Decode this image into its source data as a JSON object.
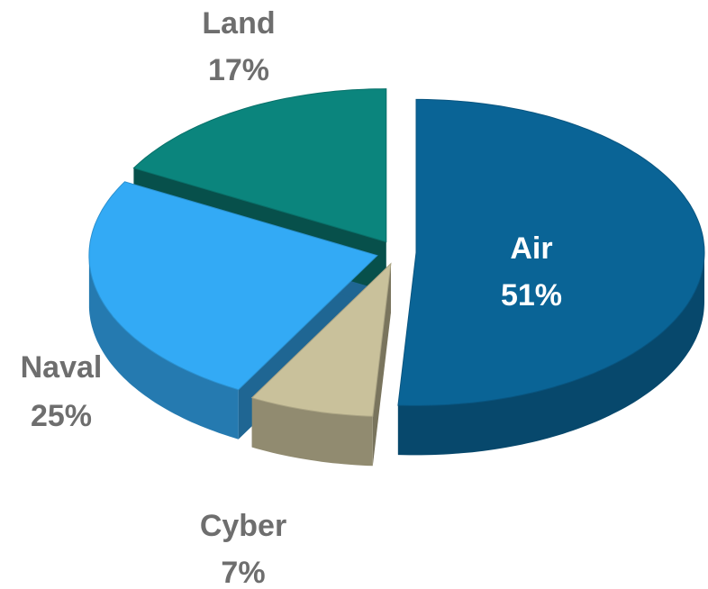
{
  "chart_data": {
    "type": "pie",
    "categories": [
      "Air",
      "Cyber",
      "Naval",
      "Land"
    ],
    "values": [
      51,
      7,
      25,
      17
    ],
    "value_labels": [
      "51%",
      "7%",
      "25%",
      "17%"
    ],
    "colors": [
      "#0a6496",
      "#c9c19b",
      "#33aaf5",
      "#0b857d"
    ]
  }
}
